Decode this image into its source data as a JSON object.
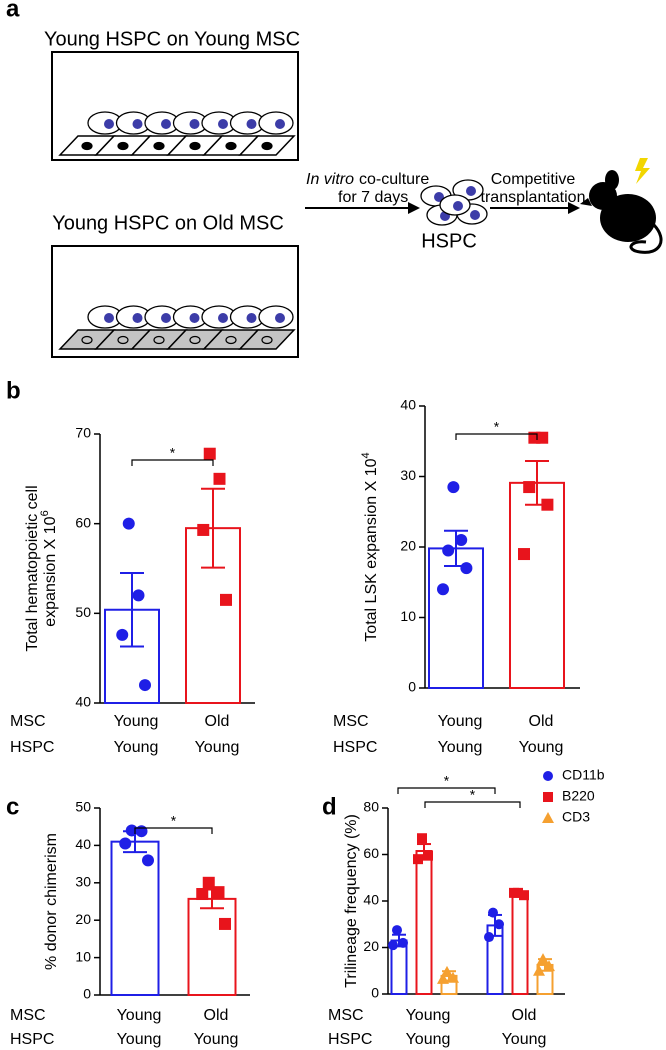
{
  "diagram": {
    "panel_labels": [
      "a",
      "b",
      "c",
      "d"
    ],
    "dish_titles": [
      "Young HSPC on Young MSC",
      "Young HSPC on Old MSC"
    ],
    "step1": [
      "In vitro",
      "co-culture",
      "for 7 days"
    ],
    "hspc_label": "HSPC",
    "step2": [
      "Competitive",
      "transplantation"
    ]
  },
  "chart_data": [
    {
      "type": "bar",
      "y_label": [
        "Total hematopoietic cell",
        "expansion X 10"
      ],
      "y_label_sup": "6",
      "ylim": [
        40,
        70
      ],
      "yticks": [
        40,
        50,
        60,
        70
      ],
      "categories": [
        "Young",
        "Old"
      ],
      "category_rows": [
        {
          "name": "MSC",
          "labels": [
            "Young",
            "Old"
          ]
        },
        {
          "name": "HSPC",
          "labels": [
            "Young",
            "Young"
          ]
        }
      ],
      "category_colors": [
        "#1f1fe6",
        "#e8141c"
      ],
      "category_markers": [
        "circle",
        "square"
      ],
      "series": [
        {
          "values": [
            50.4,
            59.5
          ],
          "errors": [
            4.1,
            4.4
          ],
          "points": [
            [
              60,
              52,
              47.6,
              42
            ],
            [
              67.8,
              65,
              59.3,
              51.5
            ]
          ]
        }
      ],
      "annotations": [
        "*"
      ]
    },
    {
      "type": "bar",
      "y_label": [
        "Total LSK expansion X 10"
      ],
      "y_label_sup": "4",
      "ylim": [
        0,
        40
      ],
      "yticks": [
        0,
        10,
        20,
        30,
        40
      ],
      "categories": [
        "Young",
        "Old"
      ],
      "category_rows": [
        {
          "name": "MSC",
          "labels": [
            "Young",
            "Old"
          ]
        },
        {
          "name": "HSPC",
          "labels": [
            "Young",
            "Young"
          ]
        }
      ],
      "category_colors": [
        "#1f1fe6",
        "#e8141c"
      ],
      "category_markers": [
        "circle",
        "square"
      ],
      "series": [
        {
          "values": [
            19.8,
            29.1
          ],
          "errors": [
            2.5,
            3.1
          ],
          "points": [
            [
              28.5,
              21,
              19.5,
              17,
              14
            ],
            [
              35.5,
              35.5,
              28.5,
              26,
              19
            ]
          ]
        }
      ],
      "annotations": [
        "*"
      ]
    },
    {
      "type": "bar",
      "y_label": [
        "% donor chimerism"
      ],
      "ylim": [
        0,
        50
      ],
      "yticks": [
        0,
        10,
        20,
        30,
        40,
        50
      ],
      "categories": [
        "Young",
        "Old"
      ],
      "category_rows": [
        {
          "name": "MSC",
          "labels": [
            "Young",
            "Old"
          ]
        },
        {
          "name": "HSPC",
          "labels": [
            "Young",
            "Young"
          ]
        }
      ],
      "category_colors": [
        "#1f1fe6",
        "#e8141c"
      ],
      "category_markers": [
        "circle",
        "square"
      ],
      "series": [
        {
          "values": [
            41,
            25.7
          ],
          "errors": [
            2.8,
            2.5
          ],
          "points": [
            [
              44,
              43.8,
              40.5,
              36
            ],
            [
              30,
              27.5,
              27,
              19
            ]
          ]
        }
      ],
      "annotations": [
        "*"
      ]
    },
    {
      "type": "bar",
      "y_label": [
        "Trilineage frequency (%)"
      ],
      "ylim": [
        0,
        80
      ],
      "yticks": [
        0,
        20,
        40,
        60,
        80
      ],
      "categories": [
        "Young",
        "Old"
      ],
      "category_rows": [
        {
          "name": "MSC",
          "labels": [
            "Young",
            "Old"
          ]
        },
        {
          "name": "HSPC",
          "labels": [
            "Young",
            "Young"
          ]
        }
      ],
      "legend": "top-right",
      "series": [
        {
          "name": "CD11b",
          "color": "#1f1fe6",
          "marker": "circle",
          "values": [
            23,
            29.5
          ],
          "errors": [
            2.5,
            4.5
          ],
          "points": [
            [
              27.5,
              22,
              21
            ],
            [
              35,
              30,
              24.5
            ]
          ]
        },
        {
          "name": "B220",
          "color": "#e8141c",
          "marker": "square",
          "values": [
            61.5,
            43
          ],
          "errors": [
            3,
            0.8
          ],
          "points": [
            [
              67,
              59.5,
              58
            ],
            [
              43.5,
              42.5,
              43.5
            ]
          ]
        },
        {
          "name": "CD3",
          "color": "#f5a030",
          "marker": "triangle",
          "values": [
            7.8,
            12.5
          ],
          "errors": [
            2,
            2.5
          ],
          "points": [
            [
              9.5,
              7,
              6.5
            ],
            [
              15,
              12,
              10
            ]
          ]
        }
      ],
      "annotations": [
        "*",
        "*"
      ]
    }
  ]
}
